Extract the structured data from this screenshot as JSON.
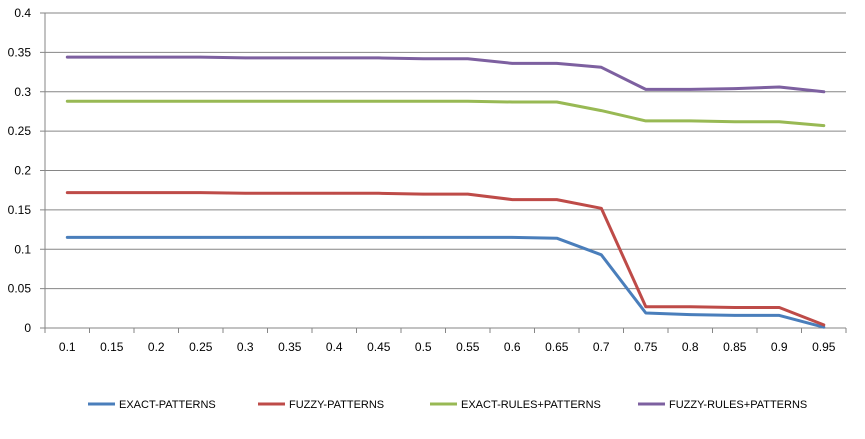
{
  "chart_data": {
    "type": "line",
    "title": "",
    "xlabel": "",
    "ylabel": "",
    "x": [
      "0.1",
      "0.15",
      "0.2",
      "0.25",
      "0.3",
      "0.35",
      "0.4",
      "0.45",
      "0.5",
      "0.55",
      "0.6",
      "0.65",
      "0.7",
      "0.75",
      "0.8",
      "0.85",
      "0.9",
      "0.95"
    ],
    "ylim": [
      0,
      0.4
    ],
    "yticks": [
      "0",
      "0.05",
      "0.1",
      "0.15",
      "0.2",
      "0.25",
      "0.3",
      "0.35",
      "0.4"
    ],
    "grid": "horizontal",
    "legend_position": "bottom",
    "series": [
      {
        "name": "EXACT-PATTERNS",
        "color": "#4a7ebb",
        "values": [
          0.115,
          0.115,
          0.115,
          0.115,
          0.115,
          0.115,
          0.115,
          0.115,
          0.115,
          0.115,
          0.115,
          0.114,
          0.093,
          0.019,
          0.017,
          0.016,
          0.016,
          0.001
        ]
      },
      {
        "name": "FUZZY-PATTERNS",
        "color": "#be4b48",
        "values": [
          0.172,
          0.172,
          0.172,
          0.172,
          0.171,
          0.171,
          0.171,
          0.171,
          0.17,
          0.17,
          0.163,
          0.163,
          0.152,
          0.027,
          0.027,
          0.026,
          0.026,
          0.004
        ]
      },
      {
        "name": "EXACT-RULES+PATTERNS",
        "color": "#98b954",
        "values": [
          0.288,
          0.288,
          0.288,
          0.288,
          0.288,
          0.288,
          0.288,
          0.288,
          0.288,
          0.288,
          0.287,
          0.287,
          0.276,
          0.263,
          0.263,
          0.262,
          0.262,
          0.257
        ]
      },
      {
        "name": "FUZZY-RULES+PATTERNS",
        "color": "#7d60a0",
        "values": [
          0.344,
          0.344,
          0.344,
          0.344,
          0.343,
          0.343,
          0.343,
          0.343,
          0.342,
          0.342,
          0.336,
          0.336,
          0.331,
          0.303,
          0.303,
          0.304,
          0.306,
          0.3
        ]
      }
    ]
  }
}
